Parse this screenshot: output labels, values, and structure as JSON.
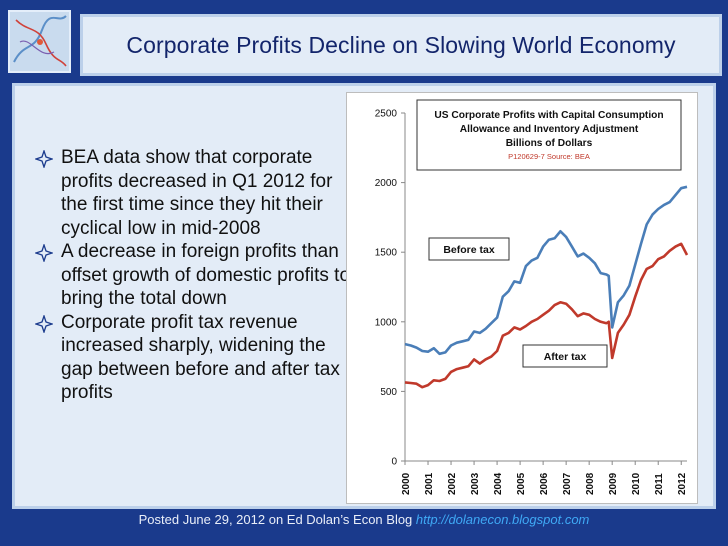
{
  "title": "Corporate Profits Decline on Slowing World Economy",
  "bullets": [
    "BEA data show that corporate profits decreased in Q1 2012 for the first time since they hit their cyclical low in mid-2008",
    "A decrease in foreign profits than offset growth of domestic profits to bring the total down",
    "Corporate profit tax revenue increased sharply, widening the gap between before and after tax profits"
  ],
  "footer": {
    "text": "Posted June 29, 2012 on Ed Dolan’s Econ Blog",
    "url": "http://dolanecon.blogspot.com"
  },
  "colors": {
    "background": "#1a3a8c",
    "panel": "#e3ecf7",
    "title": "#13256b",
    "before_tax": "#4a7eb8",
    "after_tax": "#c0392b"
  },
  "chart_data": {
    "type": "line",
    "title": "US Corporate Profits with Capital Consumption Allowance and Inventory Adjustment",
    "subtitle": "Billions of Dollars",
    "source": "P120629-7 Source: BEA",
    "ylim": [
      0,
      2500
    ],
    "yticks": [
      0,
      500,
      1000,
      1500,
      2000,
      2500
    ],
    "xlim": [
      2000.0,
      2012.25
    ],
    "xticks": [
      "2000",
      "2001",
      "2002",
      "2003",
      "2004",
      "2005",
      "2006",
      "2007",
      "2008",
      "2009",
      "2010",
      "2011",
      "2012"
    ],
    "grid": false,
    "series": [
      {
        "name": "Before tax",
        "color": "#4a7eb8",
        "points": [
          [
            2000.0,
            840
          ],
          [
            2000.25,
            830
          ],
          [
            2000.5,
            815
          ],
          [
            2000.75,
            790
          ],
          [
            2001.0,
            785
          ],
          [
            2001.25,
            810
          ],
          [
            2001.5,
            770
          ],
          [
            2001.75,
            780
          ],
          [
            2002.0,
            830
          ],
          [
            2002.25,
            850
          ],
          [
            2002.5,
            860
          ],
          [
            2002.75,
            870
          ],
          [
            2003.0,
            930
          ],
          [
            2003.25,
            920
          ],
          [
            2003.5,
            950
          ],
          [
            2003.75,
            990
          ],
          [
            2004.0,
            1030
          ],
          [
            2004.25,
            1180
          ],
          [
            2004.5,
            1220
          ],
          [
            2004.75,
            1290
          ],
          [
            2005.0,
            1280
          ],
          [
            2005.25,
            1400
          ],
          [
            2005.5,
            1440
          ],
          [
            2005.75,
            1460
          ],
          [
            2006.0,
            1540
          ],
          [
            2006.25,
            1590
          ],
          [
            2006.5,
            1600
          ],
          [
            2006.75,
            1650
          ],
          [
            2007.0,
            1610
          ],
          [
            2007.25,
            1540
          ],
          [
            2007.5,
            1470
          ],
          [
            2007.75,
            1490
          ],
          [
            2008.0,
            1460
          ],
          [
            2008.25,
            1420
          ],
          [
            2008.5,
            1350
          ],
          [
            2008.75,
            1340
          ],
          [
            2008.85,
            1330
          ],
          [
            2009.0,
            960
          ],
          [
            2009.25,
            1140
          ],
          [
            2009.5,
            1190
          ],
          [
            2009.75,
            1260
          ],
          [
            2010.0,
            1410
          ],
          [
            2010.25,
            1560
          ],
          [
            2010.5,
            1700
          ],
          [
            2010.75,
            1770
          ],
          [
            2011.0,
            1810
          ],
          [
            2011.25,
            1840
          ],
          [
            2011.5,
            1860
          ],
          [
            2011.75,
            1910
          ],
          [
            2012.0,
            1960
          ],
          [
            2012.25,
            1970
          ]
        ]
      },
      {
        "name": "After tax",
        "color": "#c0392b",
        "points": [
          [
            2000.0,
            565
          ],
          [
            2000.25,
            560
          ],
          [
            2000.5,
            555
          ],
          [
            2000.75,
            530
          ],
          [
            2001.0,
            545
          ],
          [
            2001.25,
            580
          ],
          [
            2001.5,
            575
          ],
          [
            2001.75,
            590
          ],
          [
            2002.0,
            640
          ],
          [
            2002.25,
            660
          ],
          [
            2002.5,
            670
          ],
          [
            2002.75,
            680
          ],
          [
            2003.0,
            730
          ],
          [
            2003.25,
            700
          ],
          [
            2003.5,
            730
          ],
          [
            2003.75,
            750
          ],
          [
            2004.0,
            790
          ],
          [
            2004.25,
            900
          ],
          [
            2004.5,
            920
          ],
          [
            2004.75,
            960
          ],
          [
            2005.0,
            945
          ],
          [
            2005.25,
            970
          ],
          [
            2005.5,
            1000
          ],
          [
            2005.75,
            1020
          ],
          [
            2006.0,
            1050
          ],
          [
            2006.25,
            1080
          ],
          [
            2006.5,
            1120
          ],
          [
            2006.75,
            1140
          ],
          [
            2007.0,
            1130
          ],
          [
            2007.25,
            1090
          ],
          [
            2007.5,
            1040
          ],
          [
            2007.75,
            1060
          ],
          [
            2008.0,
            1050
          ],
          [
            2008.25,
            1020
          ],
          [
            2008.5,
            1000
          ],
          [
            2008.75,
            990
          ],
          [
            2008.85,
            1000
          ],
          [
            2009.0,
            740
          ],
          [
            2009.25,
            920
          ],
          [
            2009.5,
            980
          ],
          [
            2009.75,
            1050
          ],
          [
            2010.0,
            1180
          ],
          [
            2010.25,
            1300
          ],
          [
            2010.5,
            1380
          ],
          [
            2010.75,
            1400
          ],
          [
            2011.0,
            1450
          ],
          [
            2011.25,
            1470
          ],
          [
            2011.5,
            1510
          ],
          [
            2011.75,
            1540
          ],
          [
            2012.0,
            1560
          ],
          [
            2012.25,
            1480
          ]
        ]
      }
    ]
  }
}
